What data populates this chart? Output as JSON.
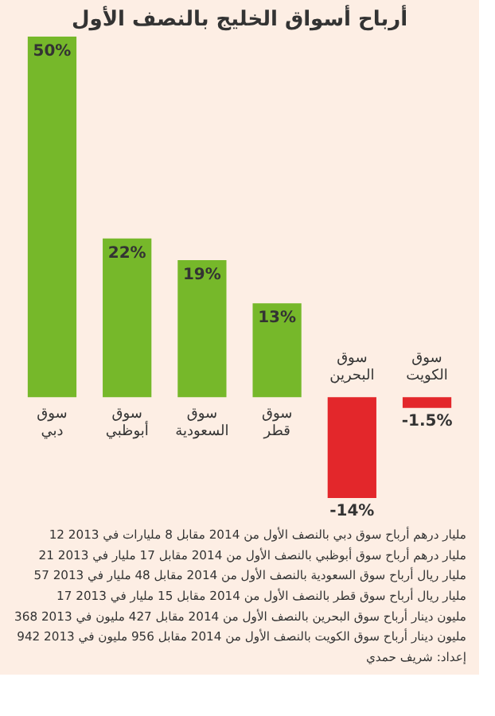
{
  "chart_data": {
    "type": "bar",
    "title": "أرباح أسواق الخليج بالنصف الأول",
    "categories": [
      "سوق دبي",
      "سوق أبوظبي",
      "سوق السعودية",
      "سوق قطر",
      "سوق البحرين",
      "سوق الكويت"
    ],
    "values": [
      50,
      22,
      19,
      13,
      -14,
      -1.5
    ],
    "colors": [
      "#76b82a",
      "#76b82a",
      "#76b82a",
      "#76b82a",
      "#e3272b",
      "#e3272b"
    ],
    "value_labels": [
      "50%",
      "22%",
      "19%",
      "13%",
      "-14%",
      "-1.5%"
    ],
    "annotations": [
      "12 مليار درهم أرباح سوق دبي بالنصف الأول من 2014 مقابل 8 مليارات في 2013",
      "21 مليار درهم أرباح سوق أبوظبي بالنصف الأول من 2014 مقابل 17 مليار في 2013",
      "57 مليار ريال أرباح سوق السعودية بالنصف الأول من 2014 مقابل 48 مليار في 2013",
      "17 مليار ريال أرباح سوق قطر بالنصف الأول من 2014 مقابل 15 مليار في 2013",
      "368 مليون دينار أرباح سوق البحرين بالنصف الأول من 2014 مقابل 427 مليون في 2013",
      "942 مليون دينار أرباح سوق الكويت بالنصف الأول من 2014 مقابل 956 مليون في 2013",
      "إعداد: شريف حمدي"
    ]
  }
}
